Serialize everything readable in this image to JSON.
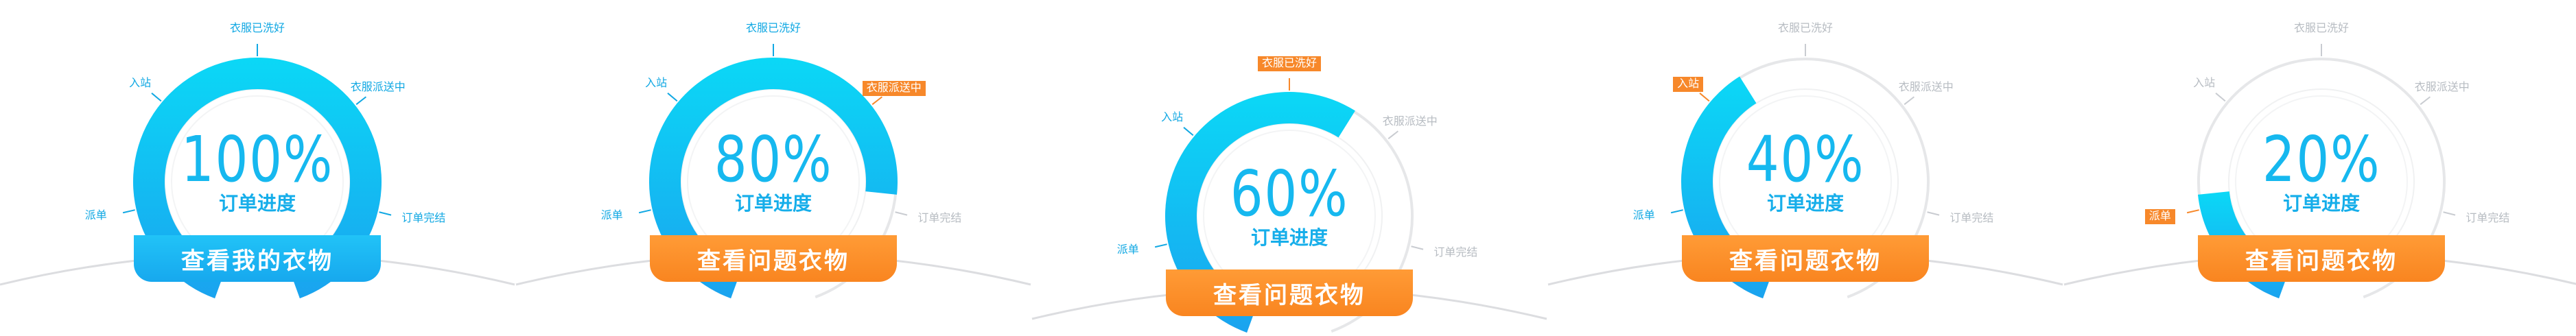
{
  "colors": {
    "accent_blue": "#16b8ef",
    "arc_blue_start": "#0bd8f6",
    "arc_blue_end": "#1aa3ef",
    "button_blue": "#1fb5f3",
    "button_orange": "#f98a24",
    "track_gray": "#e6e7e9",
    "label_gray": "#b7bcc2"
  },
  "stages": [
    "派单",
    "入站",
    "衣服已洗好",
    "衣服派送中",
    "订单完结"
  ],
  "gauges": [
    {
      "percent_text": "100%",
      "progress": 1.0,
      "subtitle": "订单进度",
      "button_label": "查看我的衣物",
      "button_color": "blue",
      "current_stage_index": null
    },
    {
      "percent_text": "80%",
      "progress": 0.8,
      "subtitle": "订单进度",
      "button_label": "查看问题衣物",
      "button_color": "orange",
      "current_stage_index": 3
    },
    {
      "percent_text": "60%",
      "progress": 0.6,
      "subtitle": "订单进度",
      "button_label": "查看问题衣物",
      "button_color": "orange",
      "current_stage_index": 2
    },
    {
      "percent_text": "40%",
      "progress": 0.4,
      "subtitle": "订单进度",
      "button_label": "查看问题衣物",
      "button_color": "orange",
      "current_stage_index": 1
    },
    {
      "percent_text": "20%",
      "progress": 0.2,
      "subtitle": "订单进度",
      "button_label": "查看问题衣物",
      "button_color": "orange",
      "current_stage_index": 0
    }
  ]
}
